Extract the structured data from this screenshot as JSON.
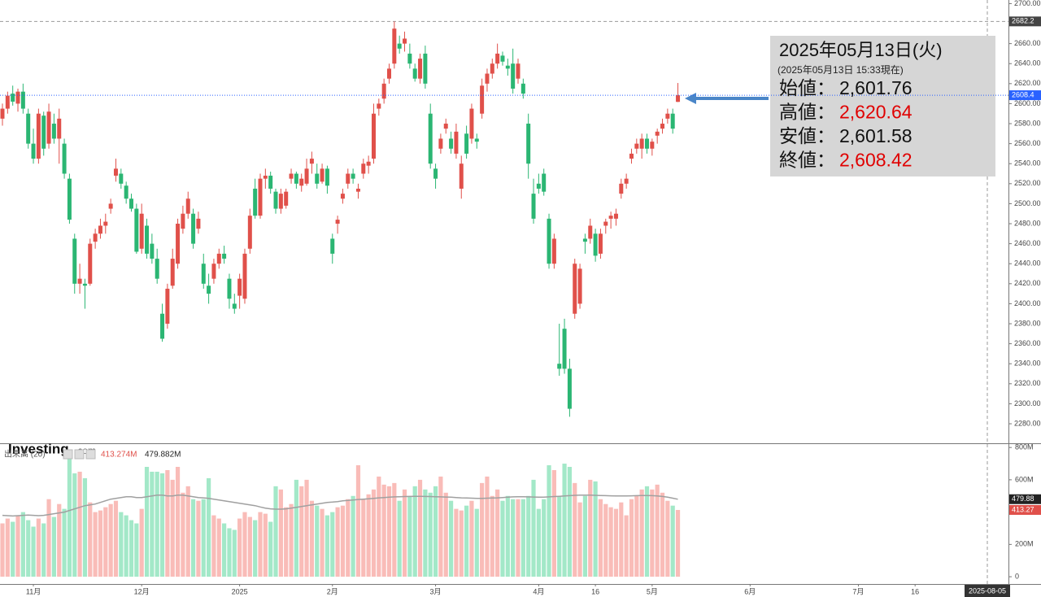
{
  "chart_data": {
    "type": "candlestick",
    "logo": "Investing",
    "logo_suffix": ".com",
    "up_color": "#e0504a",
    "down_color": "#2bb673",
    "up_volume_color": "#f9bcb8",
    "down_volume_color": "#a3e8c8",
    "ma_color": "#a0a0a0",
    "ylim": [
      2260.5,
      2703.6
    ],
    "yticks": [
      {
        "value": 2280,
        "label": "2280.00"
      },
      {
        "value": 2300,
        "label": "2300.00"
      },
      {
        "value": 2320,
        "label": "2320.00"
      },
      {
        "value": 2340,
        "label": "2340.00"
      },
      {
        "value": 2360,
        "label": "2360.00"
      },
      {
        "value": 2380,
        "label": "2380.00"
      },
      {
        "value": 2400,
        "label": "2400.00"
      },
      {
        "value": 2420,
        "label": "2420.00"
      },
      {
        "value": 2440,
        "label": "2440.00"
      },
      {
        "value": 2460,
        "label": "2460.00"
      },
      {
        "value": 2480,
        "label": "2480.00"
      },
      {
        "value": 2500,
        "label": "2500.00"
      },
      {
        "value": 2520,
        "label": "2520.00"
      },
      {
        "value": 2540,
        "label": "2540.00"
      },
      {
        "value": 2560,
        "label": "2560.00"
      },
      {
        "value": 2580,
        "label": "2580.00"
      },
      {
        "value": 2600,
        "label": "2600.00"
      },
      {
        "value": 2620,
        "label": "2620.00"
      },
      {
        "value": 2640,
        "label": "2640.00"
      },
      {
        "value": 2660,
        "label": "2660.00"
      },
      {
        "value": 2680,
        "label": "2680.00"
      },
      {
        "value": 2700,
        "label": "2700.00"
      }
    ],
    "high_marker": {
      "value": 2682.2,
      "label": "2682.2"
    },
    "last_marker": {
      "value": 2608.42,
      "label": "2608.4"
    },
    "xticks": [
      {
        "value": 6,
        "label": "11月"
      },
      {
        "value": 27,
        "label": "12月"
      },
      {
        "value": 46,
        "label": "2025"
      },
      {
        "value": 64,
        "label": "2月"
      },
      {
        "value": 84,
        "label": "3月"
      },
      {
        "value": 104,
        "label": "4月"
      },
      {
        "value": 115,
        "label": "16"
      },
      {
        "value": 126,
        "label": "5月"
      },
      {
        "value": 145,
        "label": "6月"
      },
      {
        "value": 166,
        "label": "7月"
      },
      {
        "value": 177,
        "label": "16"
      }
    ],
    "cursor_label": "2025-08-05",
    "ohlc": [
      [
        2585,
        2600,
        2578,
        2595
      ],
      [
        2595,
        2612,
        2590,
        2608
      ],
      [
        2610,
        2618,
        2598,
        2602
      ],
      [
        2600,
        2615,
        2592,
        2612
      ],
      [
        2612,
        2620,
        2590,
        2595
      ],
      [
        2590,
        2595,
        2555,
        2560
      ],
      [
        2560,
        2575,
        2540,
        2545
      ],
      [
        2545,
        2595,
        2540,
        2590
      ],
      [
        2588,
        2592,
        2548,
        2555
      ],
      [
        2560,
        2600,
        2555,
        2592
      ],
      [
        2580,
        2590,
        2560,
        2565
      ],
      [
        2565,
        2595,
        2540,
        2585
      ],
      [
        2560,
        2565,
        2525,
        2530
      ],
      [
        2525,
        2530,
        2480,
        2484
      ],
      [
        2465,
        2470,
        2410,
        2420
      ],
      [
        2420,
        2440,
        2410,
        2425
      ],
      [
        2420,
        2425,
        2395,
        2418
      ],
      [
        2420,
        2465,
        2418,
        2460
      ],
      [
        2462,
        2475,
        2455,
        2470
      ],
      [
        2470,
        2485,
        2465,
        2478
      ],
      [
        2478,
        2490,
        2470,
        2482
      ],
      [
        2495,
        2505,
        2490,
        2500
      ],
      [
        2528,
        2545,
        2522,
        2535
      ],
      [
        2530,
        2535,
        2515,
        2520
      ],
      [
        2518,
        2522,
        2500,
        2505
      ],
      [
        2505,
        2510,
        2492,
        2495
      ],
      [
        2495,
        2500,
        2450,
        2452
      ],
      [
        2455,
        2500,
        2450,
        2490
      ],
      [
        2478,
        2485,
        2445,
        2450
      ],
      [
        2460,
        2470,
        2440,
        2445
      ],
      [
        2445,
        2455,
        2420,
        2425
      ],
      [
        2390,
        2400,
        2362,
        2365
      ],
      [
        2380,
        2420,
        2375,
        2415
      ],
      [
        2418,
        2455,
        2415,
        2445
      ],
      [
        2440,
        2485,
        2435,
        2480
      ],
      [
        2475,
        2498,
        2470,
        2490
      ],
      [
        2490,
        2512,
        2485,
        2505
      ],
      [
        2490,
        2495,
        2455,
        2460
      ],
      [
        2475,
        2492,
        2470,
        2485
      ],
      [
        2440,
        2450,
        2415,
        2420
      ],
      [
        2418,
        2430,
        2400,
        2410
      ],
      [
        2425,
        2445,
        2420,
        2440
      ],
      [
        2440,
        2455,
        2435,
        2450
      ],
      [
        2450,
        2458,
        2440,
        2445
      ],
      [
        2425,
        2430,
        2395,
        2405
      ],
      [
        2400,
        2410,
        2390,
        2395
      ],
      [
        2408,
        2430,
        2395,
        2425
      ],
      [
        2405,
        2455,
        2400,
        2450
      ],
      [
        2455,
        2495,
        2450,
        2488
      ],
      [
        2515,
        2525,
        2485,
        2488
      ],
      [
        2488,
        2530,
        2485,
        2525
      ],
      [
        2525,
        2535,
        2515,
        2528
      ],
      [
        2528,
        2532,
        2510,
        2515
      ],
      [
        2512,
        2515,
        2490,
        2495
      ],
      [
        2495,
        2515,
        2490,
        2510
      ],
      [
        2498,
        2515,
        2495,
        2512
      ],
      [
        2525,
        2535,
        2520,
        2530
      ],
      [
        2530,
        2532,
        2515,
        2520
      ],
      [
        2518,
        2530,
        2512,
        2525
      ],
      [
        2520,
        2545,
        2518,
        2535
      ],
      [
        2540,
        2552,
        2530,
        2545
      ],
      [
        2530,
        2540,
        2515,
        2520
      ],
      [
        2522,
        2540,
        2520,
        2535
      ],
      [
        2535,
        2538,
        2510,
        2518
      ],
      [
        2465,
        2470,
        2440,
        2450
      ],
      [
        2480,
        2488,
        2470,
        2484
      ],
      [
        2505,
        2515,
        2500,
        2510
      ],
      [
        2520,
        2535,
        2515,
        2530
      ],
      [
        2530,
        2535,
        2520,
        2525
      ],
      [
        2512,
        2520,
        2505,
        2515
      ],
      [
        2530,
        2545,
        2525,
        2540
      ],
      [
        2538,
        2548,
        2530,
        2542
      ],
      [
        2545,
        2600,
        2540,
        2590
      ],
      [
        2595,
        2605,
        2588,
        2600
      ],
      [
        2605,
        2625,
        2600,
        2620
      ],
      [
        2625,
        2640,
        2620,
        2635
      ],
      [
        2640,
        2682.2,
        2635,
        2675
      ],
      [
        2660,
        2668,
        2650,
        2655
      ],
      [
        2660,
        2672,
        2652,
        2665
      ],
      [
        2650,
        2660,
        2635,
        2640
      ],
      [
        2635,
        2640,
        2622,
        2625
      ],
      [
        2625,
        2650,
        2620,
        2645
      ],
      [
        2650,
        2658,
        2615,
        2620
      ],
      [
        2590,
        2600,
        2535,
        2540
      ],
      [
        2535,
        2540,
        2515,
        2525
      ],
      [
        2555,
        2570,
        2550,
        2565
      ],
      [
        2575,
        2585,
        2570,
        2580
      ],
      [
        2565,
        2572,
        2550,
        2555
      ],
      [
        2550,
        2580,
        2545,
        2572
      ],
      [
        2515,
        2548,
        2505,
        2540
      ],
      [
        2570,
        2578,
        2545,
        2550
      ],
      [
        2565,
        2600,
        2560,
        2595
      ],
      [
        2565,
        2570,
        2555,
        2562
      ],
      [
        2590,
        2625,
        2585,
        2618
      ],
      [
        2620,
        2635,
        2612,
        2630
      ],
      [
        2630,
        2645,
        2625,
        2640
      ],
      [
        2640,
        2660,
        2635,
        2650
      ],
      [
        2648,
        2652,
        2638,
        2642
      ],
      [
        2638,
        2645,
        2628,
        2635
      ],
      [
        2640,
        2655,
        2610,
        2615
      ],
      [
        2625,
        2645,
        2620,
        2640
      ],
      [
        2620,
        2625,
        2605,
        2610
      ],
      [
        2580,
        2590,
        2525,
        2540
      ],
      [
        2510,
        2525,
        2480,
        2485
      ],
      [
        2520,
        2530,
        2510,
        2515
      ],
      [
        2530,
        2535,
        2508,
        2512
      ],
      [
        2485,
        2490,
        2435,
        2440
      ],
      [
        2440,
        2470,
        2435,
        2465
      ],
      [
        2340,
        2380,
        2328,
        2335
      ],
      [
        2375,
        2385,
        2330,
        2335
      ],
      [
        2335,
        2345,
        2287,
        2295
      ],
      [
        2390,
        2445,
        2385,
        2440
      ],
      [
        2400,
        2440,
        2395,
        2435
      ],
      [
        2465,
        2470,
        2450,
        2462
      ],
      [
        2465,
        2485,
        2460,
        2478
      ],
      [
        2470,
        2475,
        2442,
        2448
      ],
      [
        2450,
        2475,
        2445,
        2470
      ],
      [
        2478,
        2485,
        2470,
        2482
      ],
      [
        2485,
        2492,
        2475,
        2488
      ],
      [
        2485,
        2495,
        2478,
        2490
      ],
      [
        2510,
        2525,
        2505,
        2520
      ],
      [
        2520,
        2530,
        2515,
        2525
      ],
      [
        2545,
        2555,
        2540,
        2550
      ],
      [
        2555,
        2565,
        2550,
        2560
      ],
      [
        2555,
        2570,
        2545,
        2565
      ],
      [
        2565,
        2570,
        2550,
        2555
      ],
      [
        2555,
        2565,
        2548,
        2562
      ],
      [
        2568,
        2575,
        2560,
        2572
      ],
      [
        2575,
        2585,
        2570,
        2580
      ],
      [
        2585,
        2595,
        2580,
        2590
      ],
      [
        2590,
        2595,
        2570,
        2575
      ],
      [
        2601.76,
        2620.64,
        2601.58,
        2608.42
      ]
    ],
    "volume_title": "出来高 (20)",
    "volume_readout": [
      {
        "value": 413.274,
        "label": "413.274M",
        "color": "#e0504a"
      },
      {
        "value": 479.882,
        "label": "479.882M",
        "color": "#222222"
      }
    ],
    "volume_markers": [
      {
        "value": 479.882,
        "label": "479.88",
        "color": "#222222"
      },
      {
        "value": 413.274,
        "label": "413.27",
        "color": "#e0504a"
      }
    ],
    "vlim": [
      -45,
      821
    ],
    "vticks": [
      {
        "value": 800,
        "label": "800M"
      },
      {
        "value": 600,
        "label": "600M"
      },
      {
        "value": 400,
        "label": "400M"
      },
      {
        "value": 200,
        "label": "200M"
      },
      0
    ],
    "volume": [
      330,
      360,
      340,
      380,
      400,
      350,
      310,
      360,
      330,
      480,
      370,
      450,
      420,
      740,
      640,
      650,
      610,
      460,
      400,
      410,
      430,
      450,
      470,
      400,
      380,
      350,
      330,
      420,
      680,
      650,
      650,
      640,
      660,
      600,
      680,
      520,
      560,
      480,
      470,
      480,
      610,
      380,
      360,
      330,
      300,
      290,
      360,
      400,
      370,
      350,
      400,
      390,
      340,
      560,
      540,
      430,
      450,
      600,
      560,
      600,
      470,
      440,
      420,
      380,
      400,
      430,
      440,
      480,
      500,
      690,
      480,
      510,
      540,
      620,
      570,
      560,
      580,
      470,
      540,
      500,
      560,
      600,
      540,
      520,
      560,
      620,
      520,
      470,
      420,
      410,
      440,
      470,
      420,
      580,
      620,
      500,
      540,
      470,
      500,
      480,
      480,
      480,
      500,
      600,
      420,
      480,
      690,
      660,
      500,
      700,
      680,
      580,
      460,
      500,
      600,
      590,
      480,
      450,
      430,
      420,
      460,
      380,
      480,
      500,
      540,
      560,
      540,
      570,
      520,
      470,
      440,
      413.274
    ],
    "volume_ma": [
      380,
      378,
      376,
      378,
      380,
      382,
      380,
      378,
      380,
      385,
      390,
      395,
      400,
      410,
      420,
      430,
      440,
      445,
      450,
      460,
      470,
      480,
      485,
      490,
      495,
      495,
      490,
      490,
      495,
      500,
      505,
      505,
      500,
      500,
      505,
      505,
      500,
      495,
      490,
      488,
      485,
      480,
      475,
      470,
      465,
      460,
      455,
      450,
      445,
      440,
      432,
      425,
      420,
      418,
      418,
      420,
      425,
      430,
      435,
      440,
      445,
      450,
      455,
      460,
      462,
      465,
      470,
      472,
      475,
      478,
      480,
      482,
      485,
      488,
      490,
      492,
      494,
      495,
      496,
      497,
      498,
      498,
      497,
      496,
      495,
      494,
      493,
      492,
      490,
      488,
      487,
      486,
      485,
      485,
      486,
      487,
      488,
      490,
      492,
      494,
      495,
      495,
      494,
      493,
      492,
      492,
      494,
      496,
      498,
      500,
      502,
      504,
      505,
      505,
      505,
      504,
      503,
      502,
      501,
      500,
      500,
      500,
      501,
      502,
      503,
      503,
      502,
      500,
      497,
      492,
      486,
      479.882
    ],
    "info": {
      "date": "2025年05月13日(火)",
      "time": "(2025年05月13日 15:33現在)",
      "rows": [
        {
          "label": "始値：",
          "value": "2,601.76",
          "color": "#111111"
        },
        {
          "label": "高値：",
          "value": "2,620.64",
          "color": "#e00000"
        },
        {
          "label": "安値：",
          "value": "2,601.58",
          "color": "#111111"
        },
        {
          "label": "終値：",
          "value": "2,608.42",
          "color": "#e00000"
        }
      ]
    }
  }
}
